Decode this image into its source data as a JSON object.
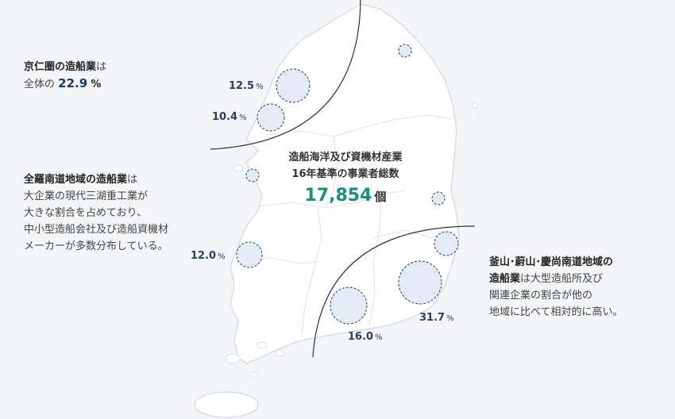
{
  "center": {
    "title_line1": "造船海洋及び資機材産業",
    "title_line2": "16年基準の事業者総数",
    "total": "17,854",
    "unit": "個"
  },
  "regions": {
    "gyeonggi": {
      "lead": "京仁圏の造船業",
      "suffix": "は",
      "line2_prefix": "全体の",
      "percent": "22.9",
      "percent_symbol": "%"
    },
    "jeolla": {
      "lead": "全羅南道地域の造船業",
      "suffix": "は",
      "lines": [
        "大企業の現代三湖重工業が",
        "大きな割合を占めており、",
        "中小型造船会社及び造船資機材",
        "メーカーが多数分布している。"
      ]
    },
    "busan": {
      "lead": "釜山･蔚山･慶尚南道地域の",
      "lead2": "造船業",
      "suffix": "は大型造船所及び",
      "lines": [
        "関連企業の割合が他の",
        "地域に比べて相対的に高い。"
      ]
    }
  },
  "bubbles": [
    {
      "value": "12.5",
      "symbol": "%"
    },
    {
      "value": "10.4",
      "symbol": "%"
    },
    {
      "value": "12.0",
      "symbol": "%"
    },
    {
      "value": "16.0",
      "symbol": "%"
    },
    {
      "value": "31.7",
      "symbol": "%"
    }
  ],
  "colors": {
    "map_fill": "#ffffff",
    "map_stroke": "#d7dbe1",
    "bubble_fill": "#e4ebf5",
    "bubble_stroke": "#2a3f6a",
    "accent": "#1a8f7a"
  }
}
